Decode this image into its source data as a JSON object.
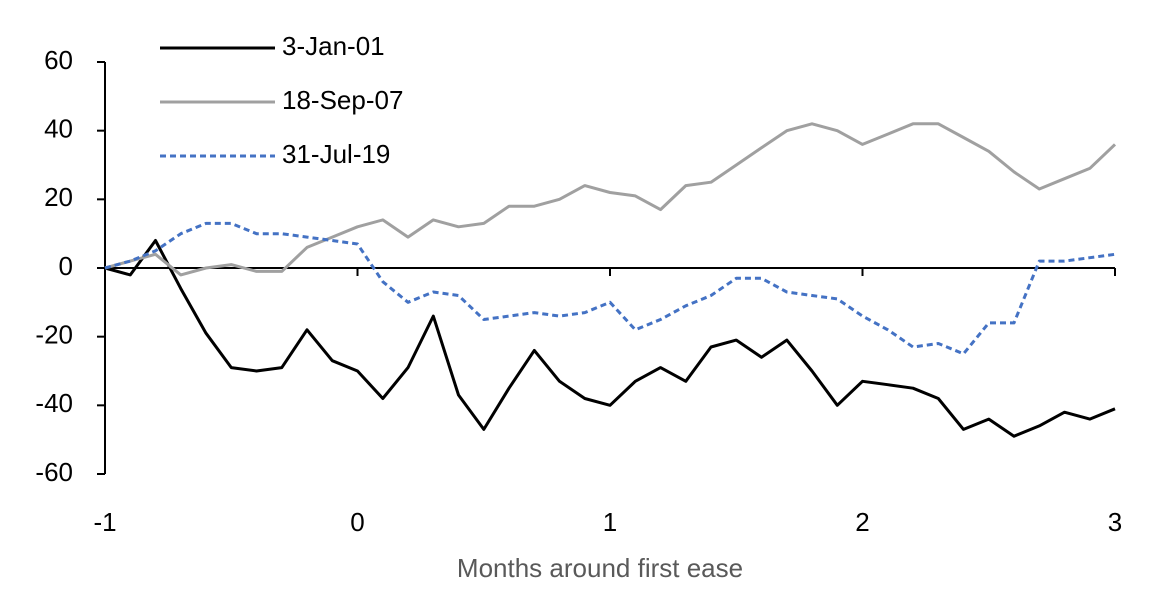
{
  "chart_data": {
    "type": "line",
    "xlabel": "Months around first ease",
    "x": [
      -1,
      -0.9,
      -0.8,
      -0.7,
      -0.6,
      -0.5,
      -0.4,
      -0.3,
      -0.2,
      -0.1,
      0,
      0.1,
      0.2,
      0.3,
      0.4,
      0.5,
      0.6,
      0.7,
      0.8,
      0.9,
      1,
      1.1,
      1.2,
      1.3,
      1.4,
      1.5,
      1.6,
      1.7,
      1.8,
      1.9,
      2,
      2.1,
      2.2,
      2.3,
      2.4,
      2.5,
      2.6,
      2.7,
      2.8,
      2.9,
      3
    ],
    "series": [
      {
        "name": "3-Jan-01",
        "color": "#000000",
        "dashed": false,
        "values": [
          0,
          -2,
          8,
          -6,
          -19,
          -29,
          -30,
          -29,
          -18,
          -27,
          -30,
          -38,
          -29,
          -14,
          -37,
          -47,
          -35,
          -24,
          -33,
          -38,
          -40,
          -33,
          -29,
          -33,
          -23,
          -21,
          -26,
          -21,
          -30,
          -40,
          -33,
          -34,
          -35,
          -38,
          -47,
          -44,
          -49,
          -46,
          -42,
          -44,
          -41
        ]
      },
      {
        "name": "18-Sep-07",
        "color": "#a0a0a0",
        "dashed": false,
        "values": [
          0,
          2,
          4,
          -2,
          0,
          1,
          -1,
          -1,
          6,
          9,
          12,
          14,
          9,
          14,
          12,
          13,
          18,
          18,
          20,
          24,
          22,
          21,
          17,
          24,
          25,
          30,
          35,
          40,
          42,
          40,
          36,
          39,
          42,
          42,
          38,
          34,
          28,
          23,
          26,
          29,
          36
        ]
      },
      {
        "name": "31-Jul-19",
        "color": "#4472c4",
        "dashed": true,
        "values": [
          0,
          2,
          5,
          10,
          13,
          13,
          10,
          10,
          9,
          8,
          7,
          -4,
          -10,
          -7,
          -8,
          -15,
          -14,
          -13,
          -14,
          -13,
          -10,
          -18,
          -15,
          -11,
          -8,
          -3,
          -3,
          -7,
          -8,
          -9,
          -14,
          -18,
          -23,
          -22,
          -25,
          -16,
          -16,
          2,
          2,
          3,
          4
        ]
      }
    ],
    "xlim": [
      -1,
      3
    ],
    "xticks": [
      -1,
      0,
      1,
      2,
      3
    ],
    "ylim": [
      -60,
      60
    ],
    "yticks": [
      -60,
      -40,
      -20,
      0,
      20,
      40,
      60
    ],
    "legend": "upper-left"
  }
}
